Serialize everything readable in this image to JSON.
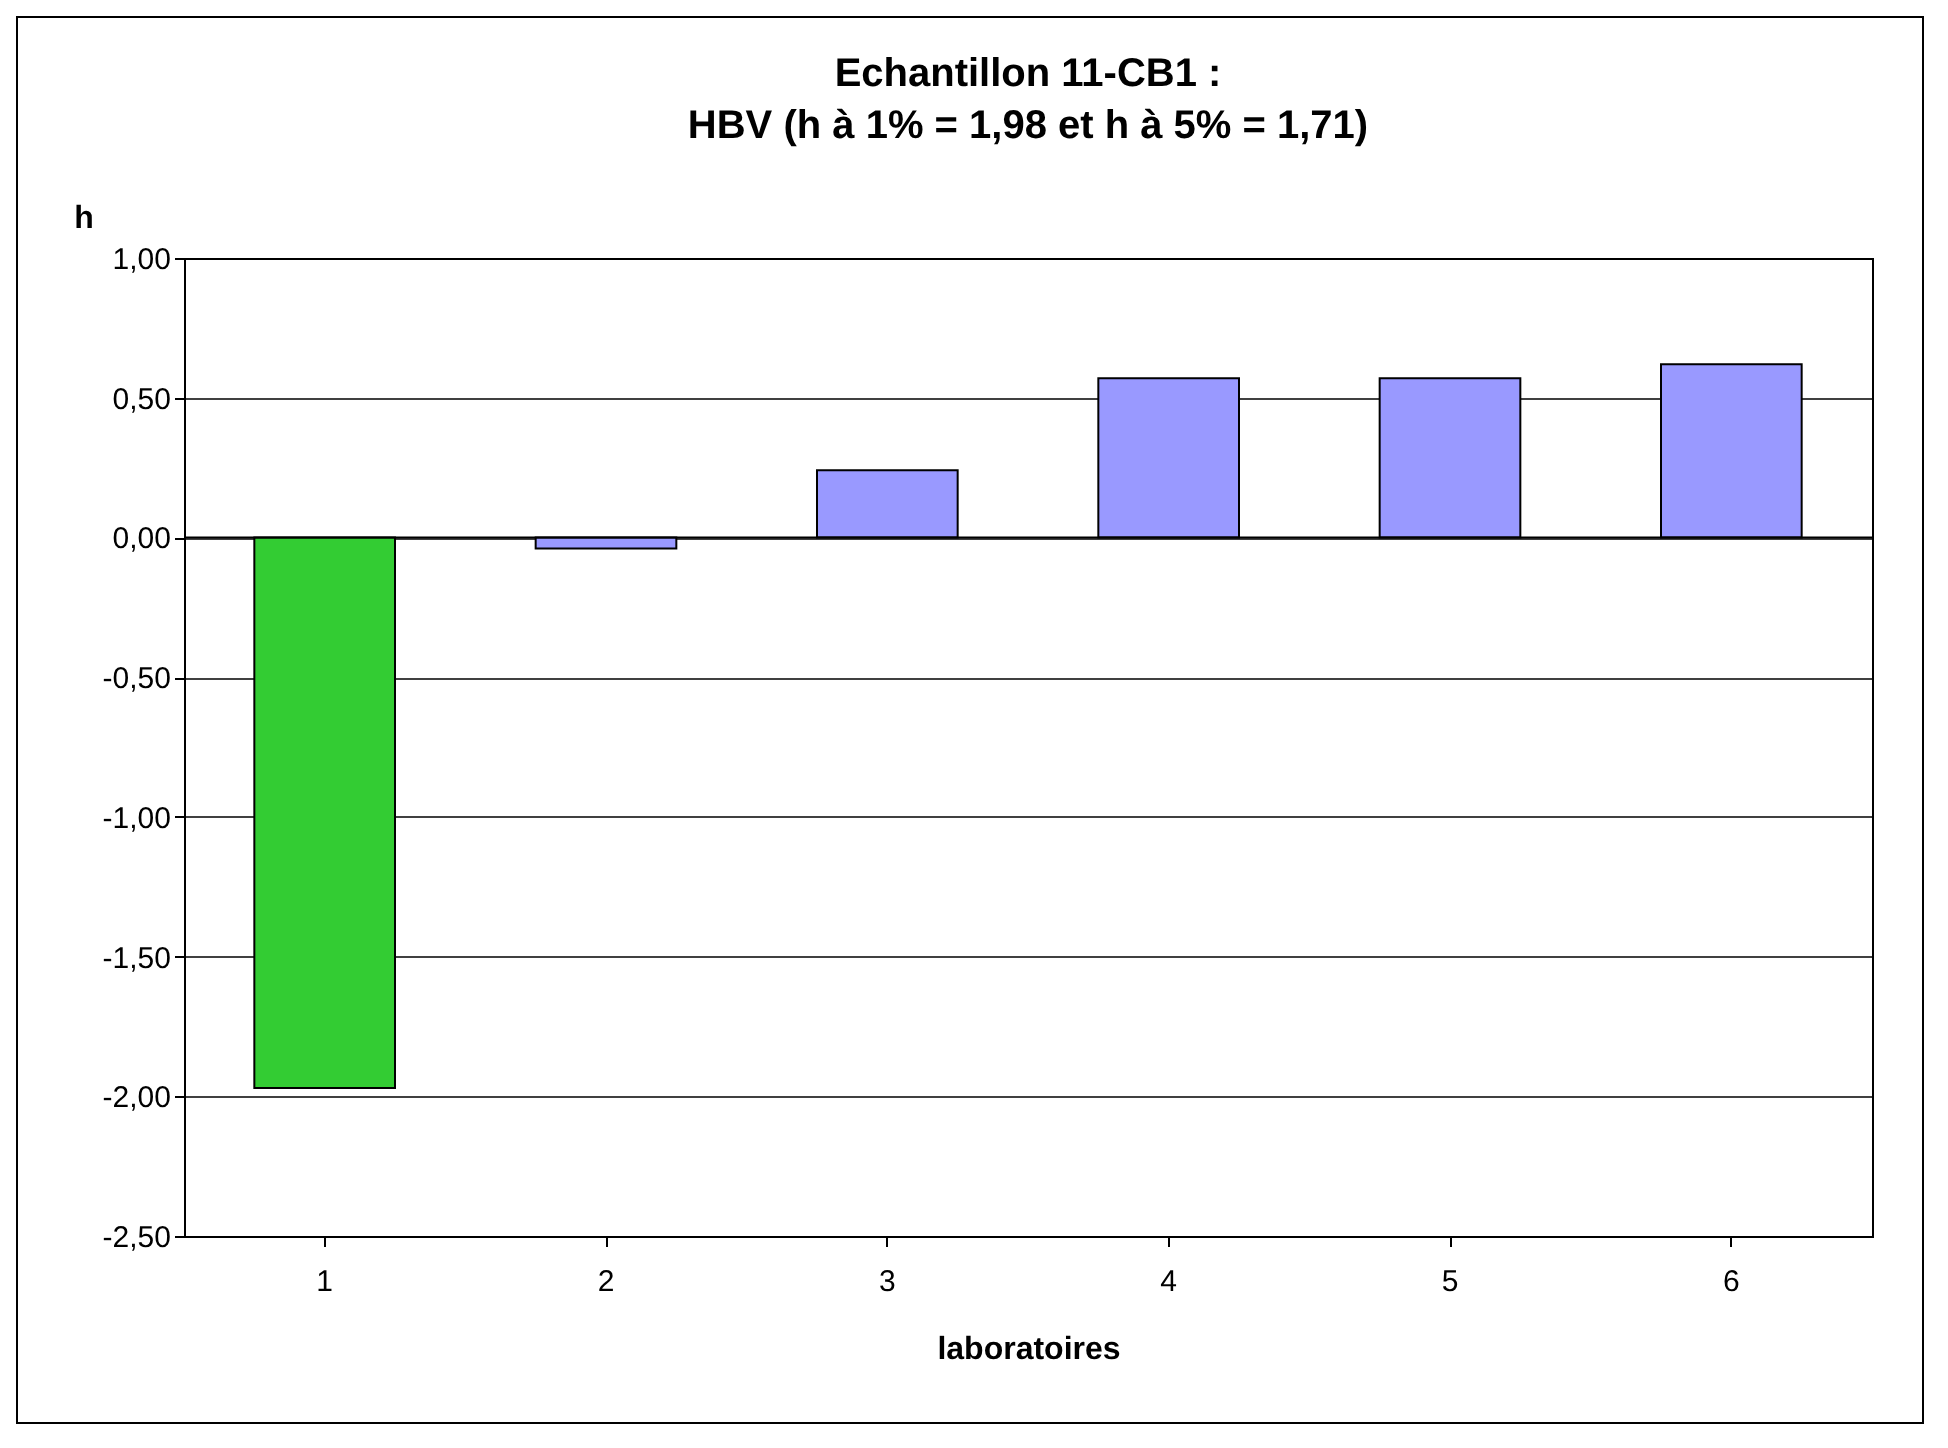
{
  "chart_data": {
    "type": "bar",
    "title": [
      "Echantillon 11-CB1 :",
      "HBV (h à 1% = 1,98 et h à 5% = 1,71)"
    ],
    "xlabel": "laboratoires",
    "ylabel": "h",
    "categories": [
      "1",
      "2",
      "3",
      "4",
      "5",
      "6"
    ],
    "values": [
      -1.97,
      -0.04,
      0.24,
      0.57,
      0.57,
      0.62
    ],
    "colors": [
      "#33cc33",
      "#9999ff",
      "#9999ff",
      "#9999ff",
      "#9999ff",
      "#9999ff"
    ],
    "ylim": [
      -2.5,
      1
    ],
    "yticks": [
      {
        "value": -2.5,
        "label": "-2,50"
      },
      {
        "value": -2,
        "label": "-2,00"
      },
      {
        "value": -1.5,
        "label": "-1,50"
      },
      {
        "value": -1,
        "label": "-1,00"
      },
      {
        "value": -0.5,
        "label": "-0,50"
      },
      {
        "value": 0,
        "label": "0,00"
      },
      {
        "value": 0.5,
        "label": "0,50"
      },
      {
        "value": 1,
        "label": "1,00"
      }
    ],
    "grid": "y",
    "legend": false
  }
}
